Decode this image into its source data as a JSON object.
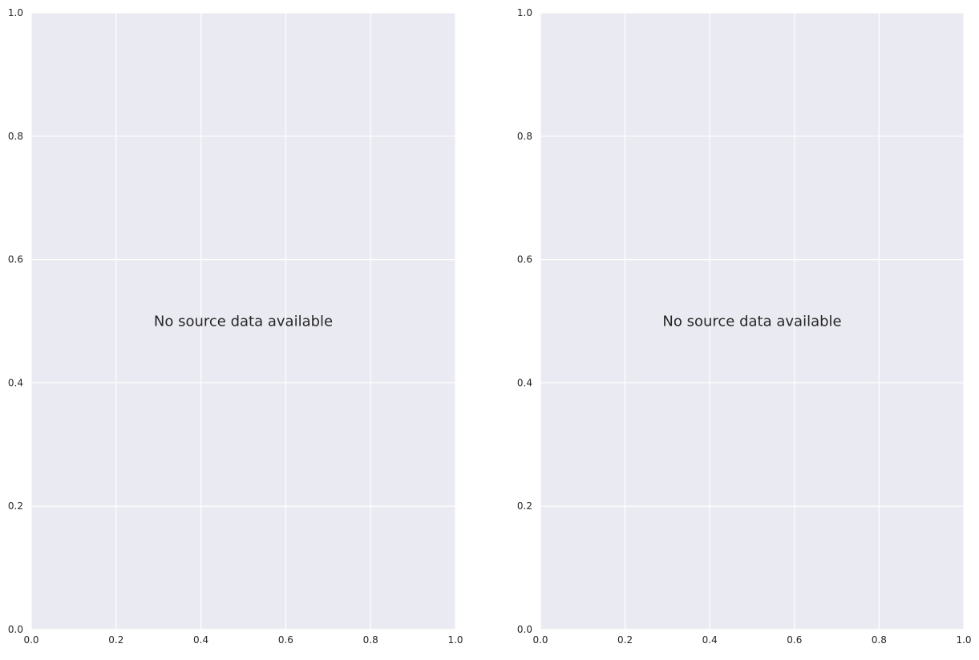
{
  "colors": {
    "background": "#ffffff",
    "plot_background": "#eaeaf2",
    "grid": "#ffffff",
    "tick_text": "#262626",
    "message_text": "#262626"
  },
  "chart_data": [
    {
      "type": "scatter",
      "title": "",
      "xlabel": "",
      "ylabel": "",
      "xlim": [
        0,
        1
      ],
      "ylim": [
        0,
        1
      ],
      "xticks": [
        0.0,
        0.2,
        0.4,
        0.6,
        0.8,
        1.0
      ],
      "yticks": [
        0.0,
        0.2,
        0.4,
        0.6,
        0.8,
        1.0
      ],
      "xtick_labels": [
        "0.0",
        "0.2",
        "0.4",
        "0.6",
        "0.8",
        "1.0"
      ],
      "ytick_labels": [
        "0.0",
        "0.2",
        "0.4",
        "0.6",
        "0.8",
        "1.0"
      ],
      "grid": true,
      "series": [],
      "annotation": "No source data available"
    },
    {
      "type": "scatter",
      "title": "",
      "xlabel": "",
      "ylabel": "",
      "xlim": [
        0,
        1
      ],
      "ylim": [
        0,
        1
      ],
      "xticks": [
        0.0,
        0.2,
        0.4,
        0.6,
        0.8,
        1.0
      ],
      "yticks": [
        0.0,
        0.2,
        0.4,
        0.6,
        0.8,
        1.0
      ],
      "xtick_labels": [
        "0.0",
        "0.2",
        "0.4",
        "0.6",
        "0.8",
        "1.0"
      ],
      "ytick_labels": [
        "0.0",
        "0.2",
        "0.4",
        "0.6",
        "0.8",
        "1.0"
      ],
      "grid": true,
      "series": [],
      "annotation": "No source data available"
    }
  ]
}
